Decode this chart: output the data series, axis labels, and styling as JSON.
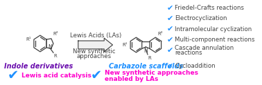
{
  "bg_color": "#ffffff",
  "indole_label": "Indole derivatives",
  "carbazole_label": "Carbazole scaffolds",
  "arrow_top": "Lewis Acids (LAs)",
  "arrow_bot1": "New synthetic",
  "arrow_bot2": "approaches",
  "bottom_left_check1": "Lewis acid catalysis",
  "bottom_center_check2a": "New synthetic approaches",
  "bottom_center_check2b": "enabled by LAs",
  "reactions": [
    "Friedel-Crafts reactions",
    "Electrocyclization",
    "Intramolecular cyclization",
    "Multi-component reactions",
    "Cascade annulation",
    "reactions",
    "Cycloaddition"
  ],
  "check_color": "#1e90ff",
  "indole_color": "#6a0dad",
  "carbazole_color": "#1e90ff",
  "highlight_color": "#ff00cc",
  "text_color": "#444444",
  "reaction_fontsize": 6.2,
  "label_fontsize": 7.0,
  "arrow_fontsize": 6.2
}
